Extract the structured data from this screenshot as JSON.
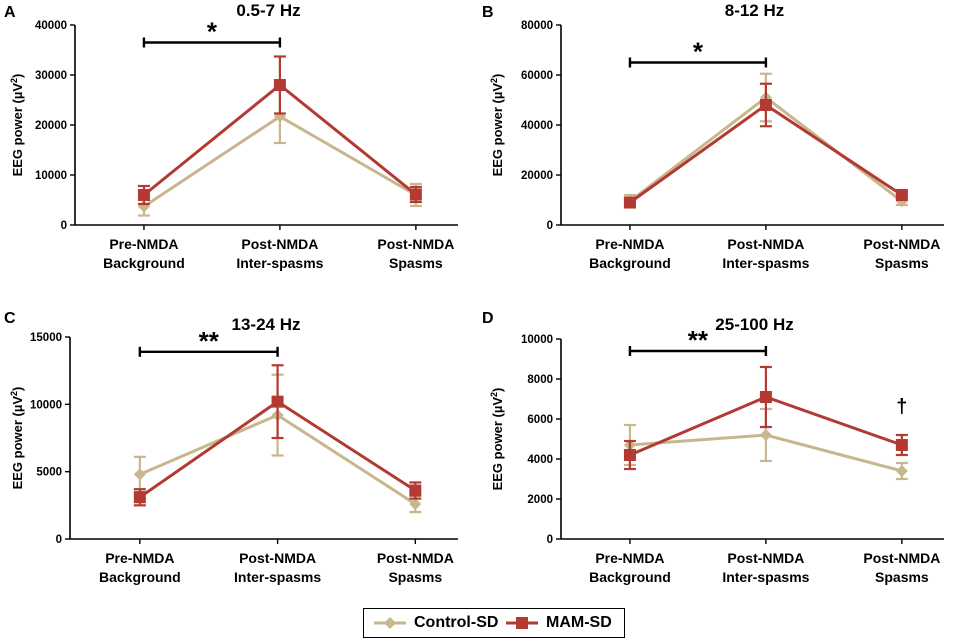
{
  "colors": {
    "control": "#c8b68e",
    "mam": "#b33a33",
    "axis": "#000000"
  },
  "legend": {
    "control_label": "Control-SD",
    "mam_label": "MAM-SD"
  },
  "chart_data": [
    {
      "panel": "A",
      "type": "line",
      "title": "0.5-7 Hz",
      "ylabel": "EEG power (µV²)",
      "ylabel_main": "EEG power (µV",
      "ylabel_sup": "2",
      "ylabel_end": ")",
      "ylim": [
        0,
        40000
      ],
      "yticks": [
        0,
        10000,
        20000,
        30000,
        40000
      ],
      "categories": [
        {
          "line1": "Pre-NMDA",
          "line2": "Background"
        },
        {
          "line1": "Post-NMDA",
          "line2": "Inter-spasms"
        },
        {
          "line1": "Post-NMDA",
          "line2": "Spasms"
        }
      ],
      "series": [
        {
          "name": "Control-SD",
          "values": [
            3700,
            21700,
            6000
          ],
          "errors": [
            1800,
            5300,
            2200
          ]
        },
        {
          "name": "MAM-SD",
          "values": [
            6000,
            28000,
            6100
          ],
          "errors": [
            1800,
            5700,
            1500
          ]
        }
      ],
      "significance": {
        "label": "*",
        "from": 0,
        "to": 1,
        "y": 36500
      }
    },
    {
      "panel": "B",
      "type": "line",
      "title": "8-12 Hz",
      "ylabel": "EEG power (µV²)",
      "ylabel_main": "EEG power (µV",
      "ylabel_sup": "2",
      "ylabel_end": ")",
      "ylim": [
        0,
        80000
      ],
      "yticks": [
        0,
        20000,
        40000,
        60000,
        80000
      ],
      "categories": [
        {
          "line1": "Pre-NMDA",
          "line2": "Background"
        },
        {
          "line1": "Post-NMDA",
          "line2": "Inter-spasms"
        },
        {
          "line1": "Post-NMDA",
          "line2": "Spasms"
        }
      ],
      "series": [
        {
          "name": "Control-SD",
          "values": [
            9500,
            51000,
            9500
          ],
          "errors": [
            2500,
            9500,
            1500
          ]
        },
        {
          "name": "MAM-SD",
          "values": [
            9000,
            48000,
            12000
          ],
          "errors": [
            1800,
            8500,
            1500
          ]
        }
      ],
      "significance": {
        "label": "*",
        "from": 0,
        "to": 1,
        "y": 65000
      }
    },
    {
      "panel": "C",
      "type": "line",
      "title": "13-24 Hz",
      "ylabel": "EEG power (µV²)",
      "ylabel_main": "EEG power (µV",
      "ylabel_sup": "2",
      "ylabel_end": ")",
      "ylim": [
        0,
        15000
      ],
      "yticks": [
        0,
        5000,
        10000,
        15000
      ],
      "categories": [
        {
          "line1": "Pre-NMDA",
          "line2": "Background"
        },
        {
          "line1": "Post-NMDA",
          "line2": "Inter-spasms"
        },
        {
          "line1": "Post-NMDA",
          "line2": "Spasms"
        }
      ],
      "series": [
        {
          "name": "Control-SD",
          "values": [
            4800,
            9200,
            2600
          ],
          "errors": [
            1300,
            3000,
            600
          ]
        },
        {
          "name": "MAM-SD",
          "values": [
            3100,
            10200,
            3600
          ],
          "errors": [
            600,
            2700,
            600
          ]
        }
      ],
      "significance": {
        "label": "**",
        "from": 0,
        "to": 1,
        "y": 13900
      }
    },
    {
      "panel": "D",
      "type": "line",
      "title": "25-100 Hz",
      "ylabel": "EEG power (µV²)",
      "ylabel_main": "EEG power (µV",
      "ylabel_sup": "2",
      "ylabel_end": ")",
      "ylim": [
        0,
        10000
      ],
      "yticks": [
        0,
        2000,
        4000,
        6000,
        8000,
        10000
      ],
      "categories": [
        {
          "line1": "Pre-NMDA",
          "line2": "Background"
        },
        {
          "line1": "Post-NMDA",
          "line2": "Inter-spasms"
        },
        {
          "line1": "Post-NMDA",
          "line2": "Spasms"
        }
      ],
      "series": [
        {
          "name": "Control-SD",
          "values": [
            4700,
            5200,
            3400
          ],
          "errors": [
            1000,
            1300,
            400
          ]
        },
        {
          "name": "MAM-SD",
          "values": [
            4200,
            7100,
            4700
          ],
          "errors": [
            700,
            1500,
            500
          ]
        }
      ],
      "significance": {
        "label": "**",
        "from": 0,
        "to": 1,
        "y": 9400
      },
      "annotation": {
        "label": "†",
        "category": 2,
        "y": 6300
      }
    }
  ]
}
